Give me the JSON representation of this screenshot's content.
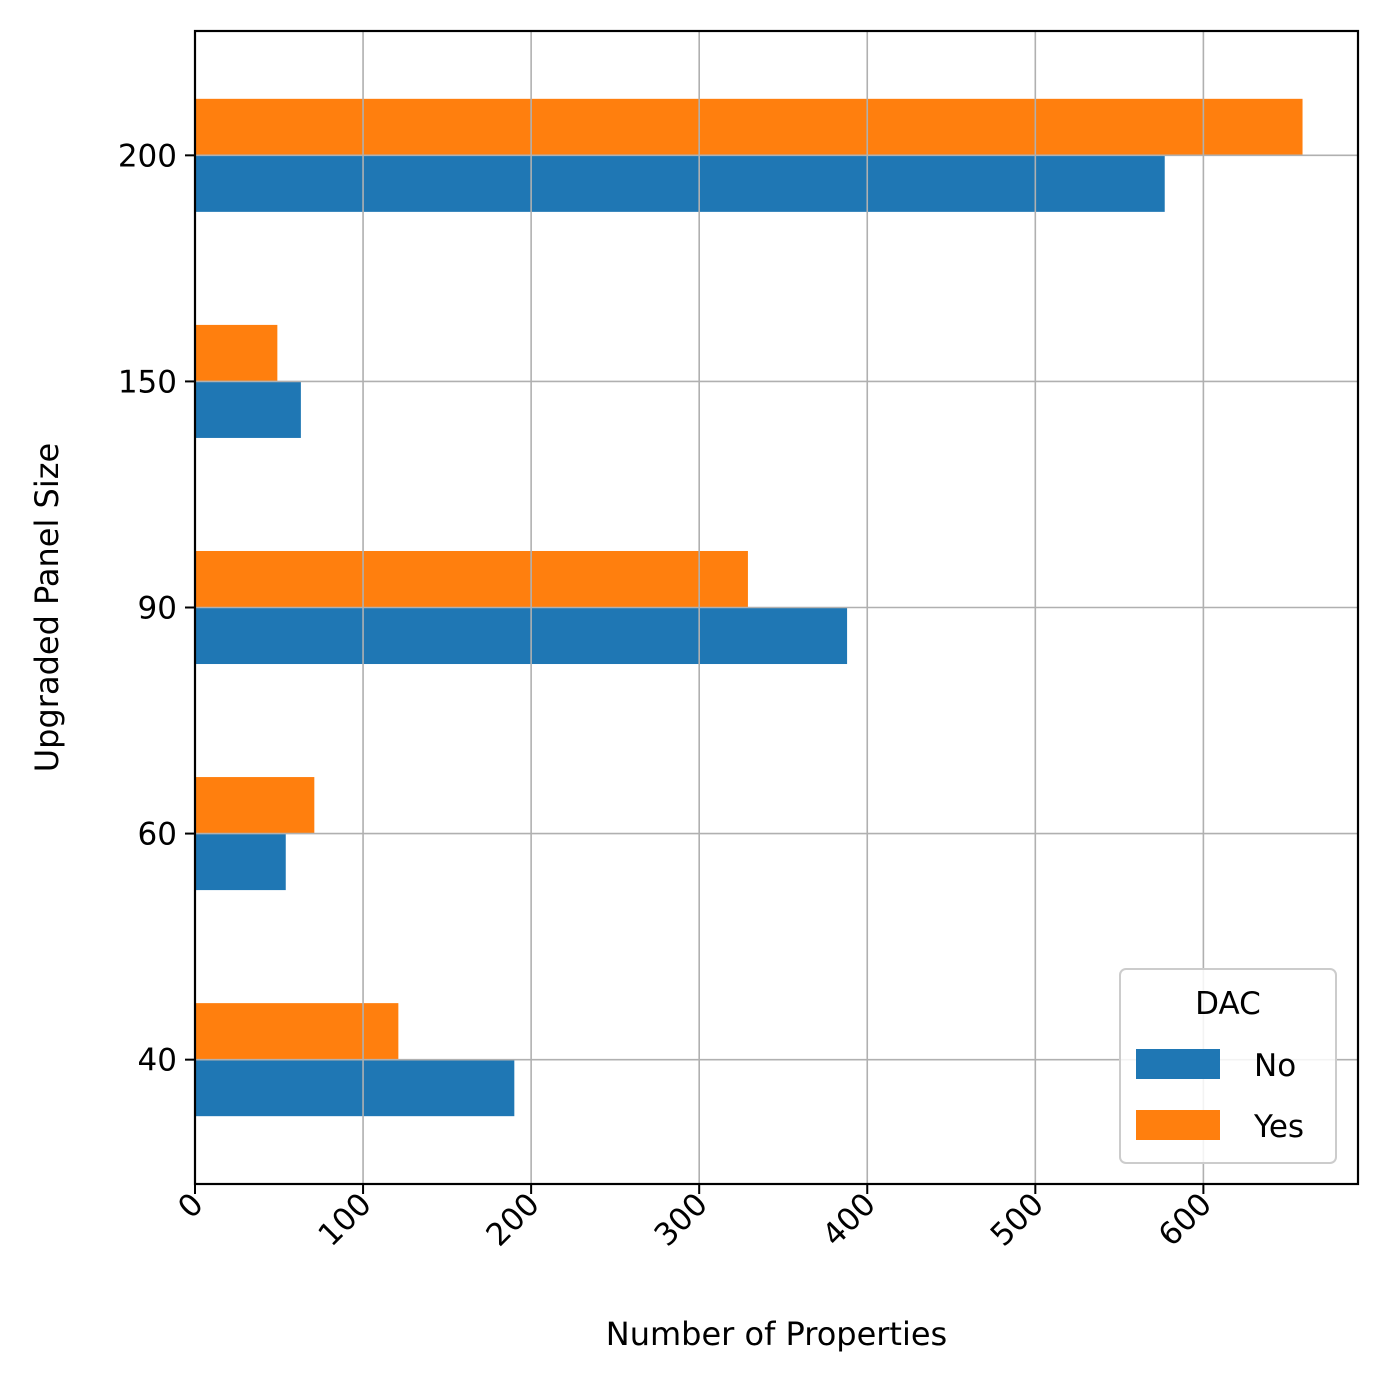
{
  "chart_data": {
    "type": "bar",
    "orientation": "horizontal",
    "title": "",
    "xlabel": "Number of Properties",
    "ylabel": "Upgraded Panel Size",
    "categories": [
      "40",
      "60",
      "90",
      "150",
      "200"
    ],
    "series": [
      {
        "name": "No",
        "color": "#1f77b4",
        "values": [
          190,
          54,
          388,
          63,
          577
        ]
      },
      {
        "name": "Yes",
        "color": "#ff7f0e",
        "values": [
          121,
          71,
          329,
          49,
          659
        ]
      }
    ],
    "xlim": [
      0,
      692
    ],
    "xticks": [
      0,
      100,
      200,
      300,
      400,
      500,
      600
    ],
    "grid": true,
    "legend": {
      "title": "DAC",
      "placement": "lower-right"
    }
  }
}
